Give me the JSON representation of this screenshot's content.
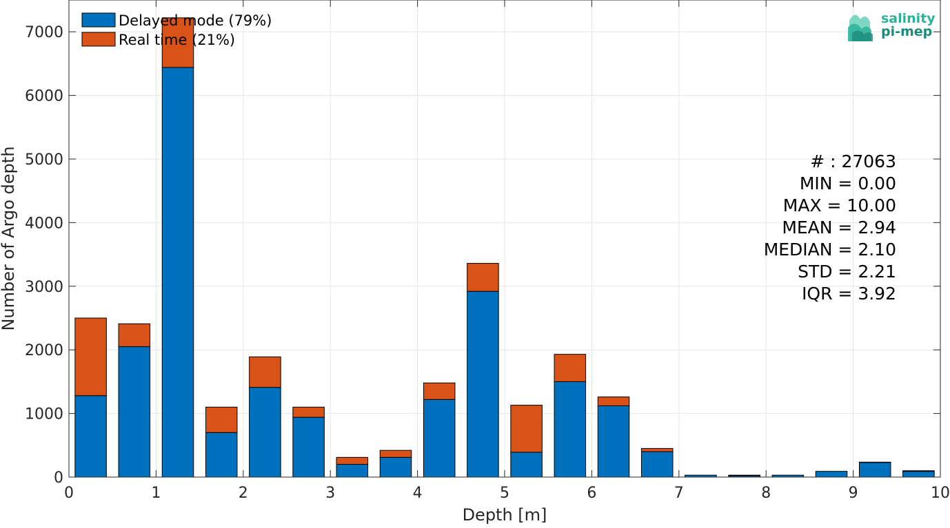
{
  "chart_data": {
    "type": "bar",
    "stacked": true,
    "xlabel": "Depth [m]",
    "ylabel": "Number of Argo depth",
    "xlim": [
      0,
      10
    ],
    "ylim": [
      0,
      7500
    ],
    "x_ticks": [
      0,
      1,
      2,
      3,
      4,
      5,
      6,
      7,
      8,
      9,
      10
    ],
    "y_ticks": [
      0,
      1000,
      2000,
      3000,
      4000,
      5000,
      6000,
      7000
    ],
    "grid": true,
    "legend_position": "top-left",
    "bin_centers": [
      0.25,
      0.75,
      1.25,
      1.75,
      2.25,
      2.75,
      3.25,
      3.75,
      4.25,
      4.75,
      5.25,
      5.75,
      6.25,
      6.75,
      7.25,
      7.75,
      8.25,
      8.75,
      9.25,
      9.75
    ],
    "bin_width": 0.5,
    "series": [
      {
        "name": "Delayed mode (79%)",
        "color": "#0072BD",
        "values": [
          1280,
          2050,
          6440,
          700,
          1410,
          940,
          200,
          310,
          1220,
          2920,
          390,
          1500,
          1120,
          400,
          30,
          20,
          30,
          90,
          230,
          90
        ]
      },
      {
        "name": "Real time (21%)",
        "color": "#D95319",
        "values": [
          1220,
          360,
          780,
          400,
          480,
          160,
          110,
          110,
          260,
          440,
          740,
          430,
          140,
          50,
          0,
          10,
          0,
          0,
          5,
          10
        ]
      }
    ]
  },
  "stats": {
    "lines": [
      "# : 27063",
      "MIN = 0.00",
      "MAX =  10.00",
      "MEAN = 2.94",
      "MEDIAN = 2.10",
      "STD = 2.21",
      "IQR = 3.92"
    ]
  },
  "logo": {
    "line1": "salinity",
    "line2": "pi-mep",
    "color1": "#2bb39a",
    "color2": "#1d8c7a"
  }
}
